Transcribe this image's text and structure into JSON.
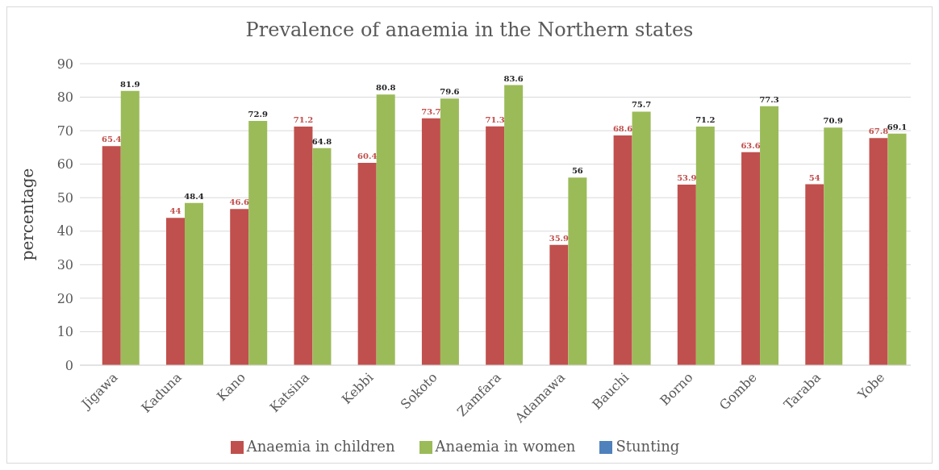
{
  "chart_data": {
    "type": "bar",
    "title": "Prevalence of anaemia in the Northern states",
    "ylabel": "percentage",
    "categories": [
      "Jigawa",
      "Kaduna",
      "Kano",
      "Katsina",
      "Kebbi",
      "Sokoto",
      "Zamfara",
      "Adamawa",
      "Bauchi",
      "Borno",
      "Gombe",
      "Taraba",
      "Yobe"
    ],
    "series": [
      {
        "name": "Stunting",
        "color": "#4f81bd",
        "values": [
          null,
          null,
          null,
          null,
          null,
          null,
          null,
          null,
          null,
          null,
          null,
          null,
          null
        ]
      },
      {
        "name": "Anaemia in children",
        "color": "#c0504d",
        "values": [
          65.4,
          44,
          46.6,
          71.2,
          60.4,
          73.7,
          71.3,
          35.9,
          68.6,
          53.9,
          63.6,
          54,
          67.8
        ]
      },
      {
        "name": "Anaemia in women",
        "color": "#9bbb59",
        "values": [
          81.9,
          48.4,
          72.9,
          64.8,
          80.8,
          79.6,
          83.6,
          56,
          75.7,
          71.2,
          77.3,
          70.9,
          69.1
        ]
      }
    ],
    "ylim": [
      0,
      90
    ],
    "yticks": [
      0,
      10,
      20,
      30,
      40,
      50,
      60,
      70,
      80,
      90
    ],
    "grid": "y",
    "legend": "bottom",
    "data_labels": true
  }
}
